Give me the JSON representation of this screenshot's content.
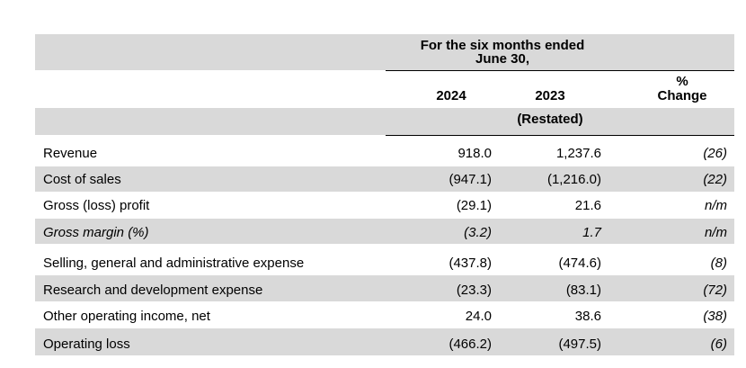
{
  "header": {
    "period_line1": "For the six months ended",
    "period_line2": "June 30,",
    "year_2024": "2024",
    "year_2023": "2023",
    "pct_line1": "%",
    "pct_line2": "Change",
    "restated": "(Restated)"
  },
  "rows": [
    {
      "label": "Revenue",
      "v2024": "918.0",
      "v2023": "1,237.6",
      "change": "(26)",
      "italic": false
    },
    {
      "label": "Cost of sales",
      "v2024": "(947.1)",
      "v2023": "(1,216.0)",
      "change": "(22)",
      "italic": false
    },
    {
      "label": "Gross (loss) profit",
      "v2024": "(29.1)",
      "v2023": "21.6",
      "change": "n/m",
      "italic": false
    },
    {
      "label": "Gross margin (%)",
      "v2024": "(3.2)",
      "v2023": "1.7",
      "change": "n/m",
      "italic": true
    },
    {
      "label": "Selling, general and administrative expense",
      "v2024": "(437.8)",
      "v2023": "(474.6)",
      "change": "(8)",
      "italic": false
    },
    {
      "label": "Research and development expense",
      "v2024": "(23.3)",
      "v2023": "(83.1)",
      "change": "(72)",
      "italic": false
    },
    {
      "label": "Other operating income, net",
      "v2024": "24.0",
      "v2023": "38.6",
      "change": "(38)",
      "italic": false
    },
    {
      "label": "Operating loss",
      "v2024": "(466.2)",
      "v2023": "(497.5)",
      "change": "(6)",
      "italic": false
    }
  ]
}
